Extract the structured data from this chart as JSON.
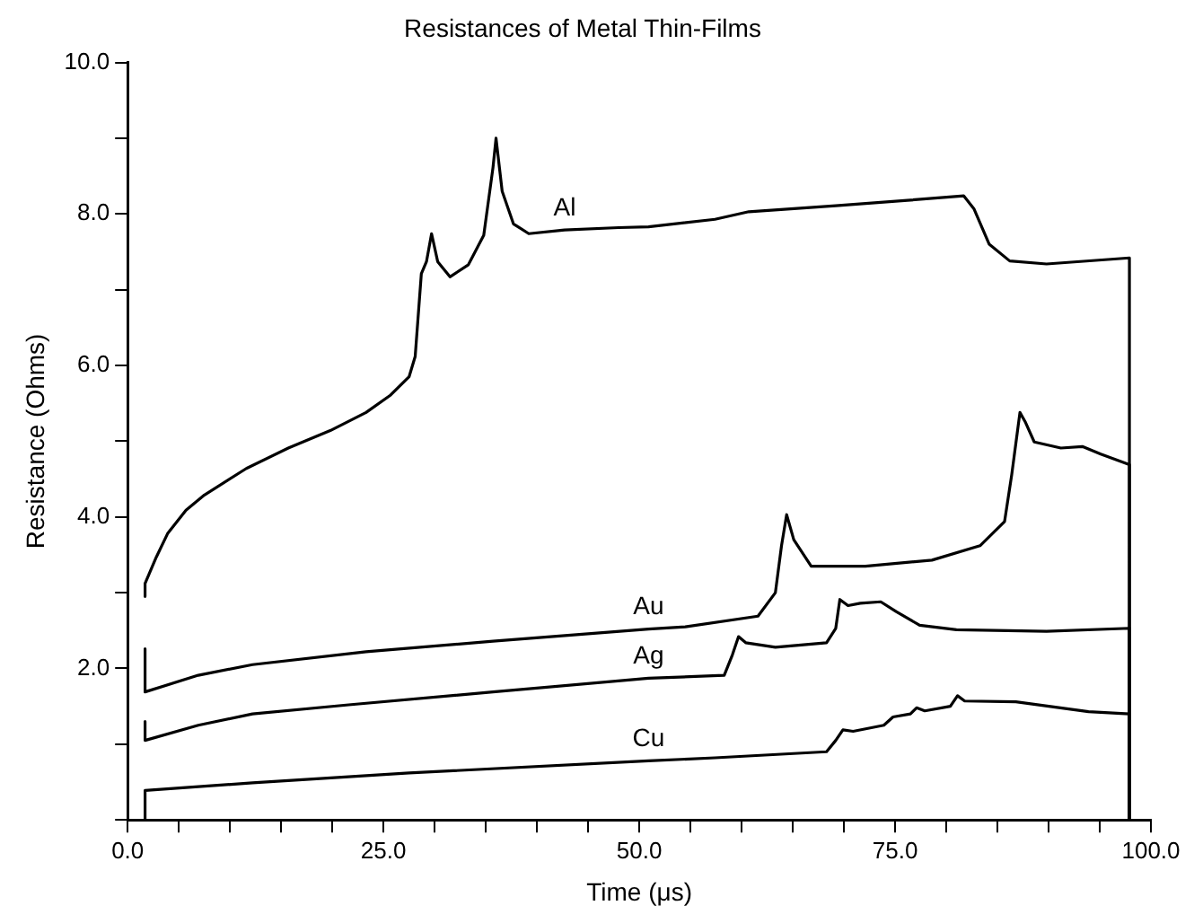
{
  "chart_data": {
    "type": "line",
    "title": "Resistances of Metal Thin-Films",
    "xlabel": "Time (μs)",
    "ylabel": "Resistance (Ohms)",
    "xlim": [
      0,
      100
    ],
    "ylim": [
      0,
      10
    ],
    "xticks": [
      {
        "value": 0,
        "label": "0.0"
      },
      {
        "value": 5,
        "label": null
      },
      {
        "value": 10,
        "label": null
      },
      {
        "value": 15,
        "label": null
      },
      {
        "value": 20,
        "label": null
      },
      {
        "value": 25,
        "label": "25.0"
      },
      {
        "value": 30,
        "label": null
      },
      {
        "value": 35,
        "label": null
      },
      {
        "value": 40,
        "label": null
      },
      {
        "value": 45,
        "label": null
      },
      {
        "value": 50,
        "label": "50.0"
      },
      {
        "value": 55,
        "label": null
      },
      {
        "value": 60,
        "label": null
      },
      {
        "value": 65,
        "label": null
      },
      {
        "value": 70,
        "label": null
      },
      {
        "value": 75,
        "label": "75.0"
      },
      {
        "value": 80,
        "label": null
      },
      {
        "value": 85,
        "label": null
      },
      {
        "value": 90,
        "label": null
      },
      {
        "value": 95,
        "label": null
      },
      {
        "value": 100,
        "label": "100.0"
      }
    ],
    "yticks": [
      {
        "value": 0,
        "label": null
      },
      {
        "value": 1,
        "label": null
      },
      {
        "value": 2,
        "label": "2.0"
      },
      {
        "value": 3,
        "label": null
      },
      {
        "value": 4,
        "label": "4.0"
      },
      {
        "value": 5,
        "label": null
      },
      {
        "value": 6,
        "label": "6.0"
      },
      {
        "value": 7,
        "label": null
      },
      {
        "value": 8,
        "label": "8.0"
      },
      {
        "value": 9,
        "label": null
      },
      {
        "value": 10,
        "label": "10.0"
      }
    ],
    "grid": false,
    "legend": false,
    "marker": "none",
    "line_style": "solid",
    "series": [
      {
        "name": "Al",
        "color": "#000000",
        "x": [
          1.7,
          1.7,
          2.8,
          3.9,
          5.7,
          7.5,
          11.6,
          15.7,
          19.8,
          23.3,
          25.7,
          27.5,
          28.1,
          28.7,
          29.2,
          29.7,
          30.3,
          31.5,
          33.3,
          34.8,
          35.7,
          36.0,
          36.6,
          37.7,
          39.2,
          42.7,
          48.0,
          50.9,
          57.4,
          60.7,
          69.2,
          76.2,
          81.7,
          82.7,
          84.2,
          86.2,
          89.8,
          97.9,
          97.9
        ],
        "values": [
          2.95,
          3.12,
          3.47,
          3.78,
          4.09,
          4.29,
          4.64,
          4.91,
          5.14,
          5.38,
          5.61,
          5.85,
          6.12,
          7.21,
          7.37,
          7.74,
          7.37,
          7.17,
          7.33,
          7.72,
          8.61,
          9.0,
          8.3,
          7.87,
          7.74,
          7.79,
          7.82,
          7.83,
          7.93,
          8.03,
          8.11,
          8.18,
          8.24,
          8.07,
          7.6,
          7.38,
          7.34,
          7.42,
          0
        ]
      },
      {
        "name": "Au",
        "color": "#000000",
        "x": [
          1.7,
          1.7,
          6.9,
          12.2,
          23.3,
          35.7,
          50.9,
          54.5,
          61.6,
          63.3,
          63.9,
          64.4,
          65.1,
          66.8,
          72.1,
          78.6,
          83.3,
          85.7,
          86.4,
          87.2,
          87.7,
          88.6,
          91.2,
          93.3,
          95.1,
          97.9,
          97.9
        ],
        "values": [
          2.26,
          1.69,
          1.91,
          2.05,
          2.22,
          2.36,
          2.52,
          2.55,
          2.69,
          3.0,
          3.62,
          4.03,
          3.7,
          3.35,
          3.35,
          3.43,
          3.62,
          3.94,
          4.56,
          5.38,
          5.26,
          4.99,
          4.91,
          4.93,
          4.83,
          4.69,
          0
        ]
      },
      {
        "name": "Ag",
        "color": "#000000",
        "x": [
          1.7,
          1.7,
          6.9,
          12.2,
          21.6,
          35.7,
          50.9,
          58.3,
          59.1,
          59.7,
          60.4,
          63.3,
          68.3,
          69.2,
          69.6,
          70.4,
          71.6,
          73.6,
          75.1,
          77.4,
          81.0,
          89.8,
          97.9,
          97.9
        ],
        "values": [
          1.3,
          1.05,
          1.25,
          1.4,
          1.52,
          1.69,
          1.87,
          1.91,
          2.18,
          2.42,
          2.34,
          2.28,
          2.34,
          2.53,
          2.91,
          2.83,
          2.86,
          2.88,
          2.75,
          2.57,
          2.51,
          2.49,
          2.53,
          0
        ]
      },
      {
        "name": "Cu",
        "color": "#000000",
        "x": [
          1.7,
          1.7,
          12.2,
          27.5,
          50.9,
          57.4,
          68.3,
          69.2,
          69.9,
          70.9,
          73.9,
          74.8,
          76.5,
          77.1,
          77.9,
          80.4,
          81.1,
          81.8,
          86.8,
          93.9,
          97.9,
          97.9
        ],
        "values": [
          0,
          0.39,
          0.49,
          0.62,
          0.78,
          0.82,
          0.9,
          1.05,
          1.19,
          1.17,
          1.25,
          1.36,
          1.4,
          1.48,
          1.44,
          1.5,
          1.64,
          1.57,
          1.56,
          1.43,
          1.4,
          0
        ]
      }
    ]
  }
}
